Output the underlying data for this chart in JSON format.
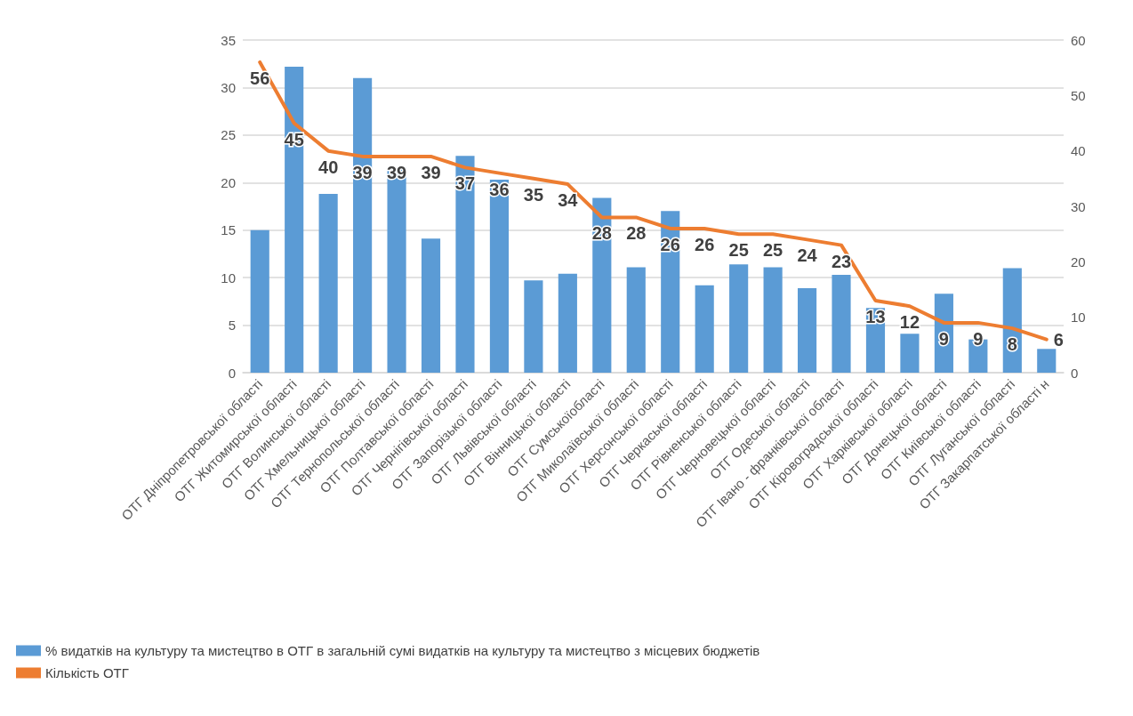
{
  "chart_data": {
    "type": "bar",
    "categories": [
      "ОТГ Дніпропетровської області",
      "ОТГ Житомирської області",
      "ОТГ Волинської області",
      "ОТГ Хмельницької області",
      "ОТГ Тернопольської області",
      "ОТГ Полтавської області",
      "ОТГ Чернігівської області",
      "ОТГ Запорізької області",
      "ОТГ Львівської області",
      "ОТГ Вінницької області",
      "ОТГ Сумськоїобласті",
      "ОТГ Миколаївської області",
      "ОТГ Херсонської області",
      "ОТГ Черкаської області",
      "ОТГ Рівненської області",
      "ОТГ Черновецької області",
      "ОТГ Одеської області",
      "ОТГ Івано - франківської області",
      "ОТГ Кіровоградської області",
      "ОТГ Харківської області",
      "ОТГ Донецької області",
      "ОТГ Київської області",
      "ОТГ Луганської області",
      "ОТГ Закарпатської області н"
    ],
    "series": [
      {
        "name": "% видатків на культуру та мистецтво в ОТГ в загальній сумі видатків на культуру та мистецтво з місцевих бюджетів",
        "color": "#5b9bd5",
        "values": [
          15,
          32.2,
          18.8,
          31,
          21.6,
          14.1,
          22.8,
          20.3,
          9.7,
          10.4,
          18.4,
          11.1,
          17,
          9.2,
          11.4,
          11.1,
          8.9,
          10.3,
          6.8,
          4.1,
          8.3,
          3.5,
          11,
          2.5
        ]
      },
      {
        "name": "Кількість ОТГ",
        "type": "line",
        "axis": "y2",
        "color": "#ed7d31",
        "data_labels": true,
        "values": [
          56,
          45,
          40,
          39,
          39,
          39,
          37,
          36,
          35,
          34,
          28,
          28,
          26,
          26,
          25,
          25,
          24,
          23,
          13,
          12,
          9,
          9,
          8,
          6
        ]
      }
    ],
    "ylim": [
      0,
      35
    ],
    "yticks": [
      0,
      5,
      10,
      15,
      20,
      25,
      30,
      35
    ],
    "y2lim": [
      0,
      60
    ],
    "y2ticks": [
      0,
      10,
      20,
      30,
      40,
      50,
      60
    ],
    "grid": "y",
    "legend": "bottom left",
    "marker": "none"
  }
}
